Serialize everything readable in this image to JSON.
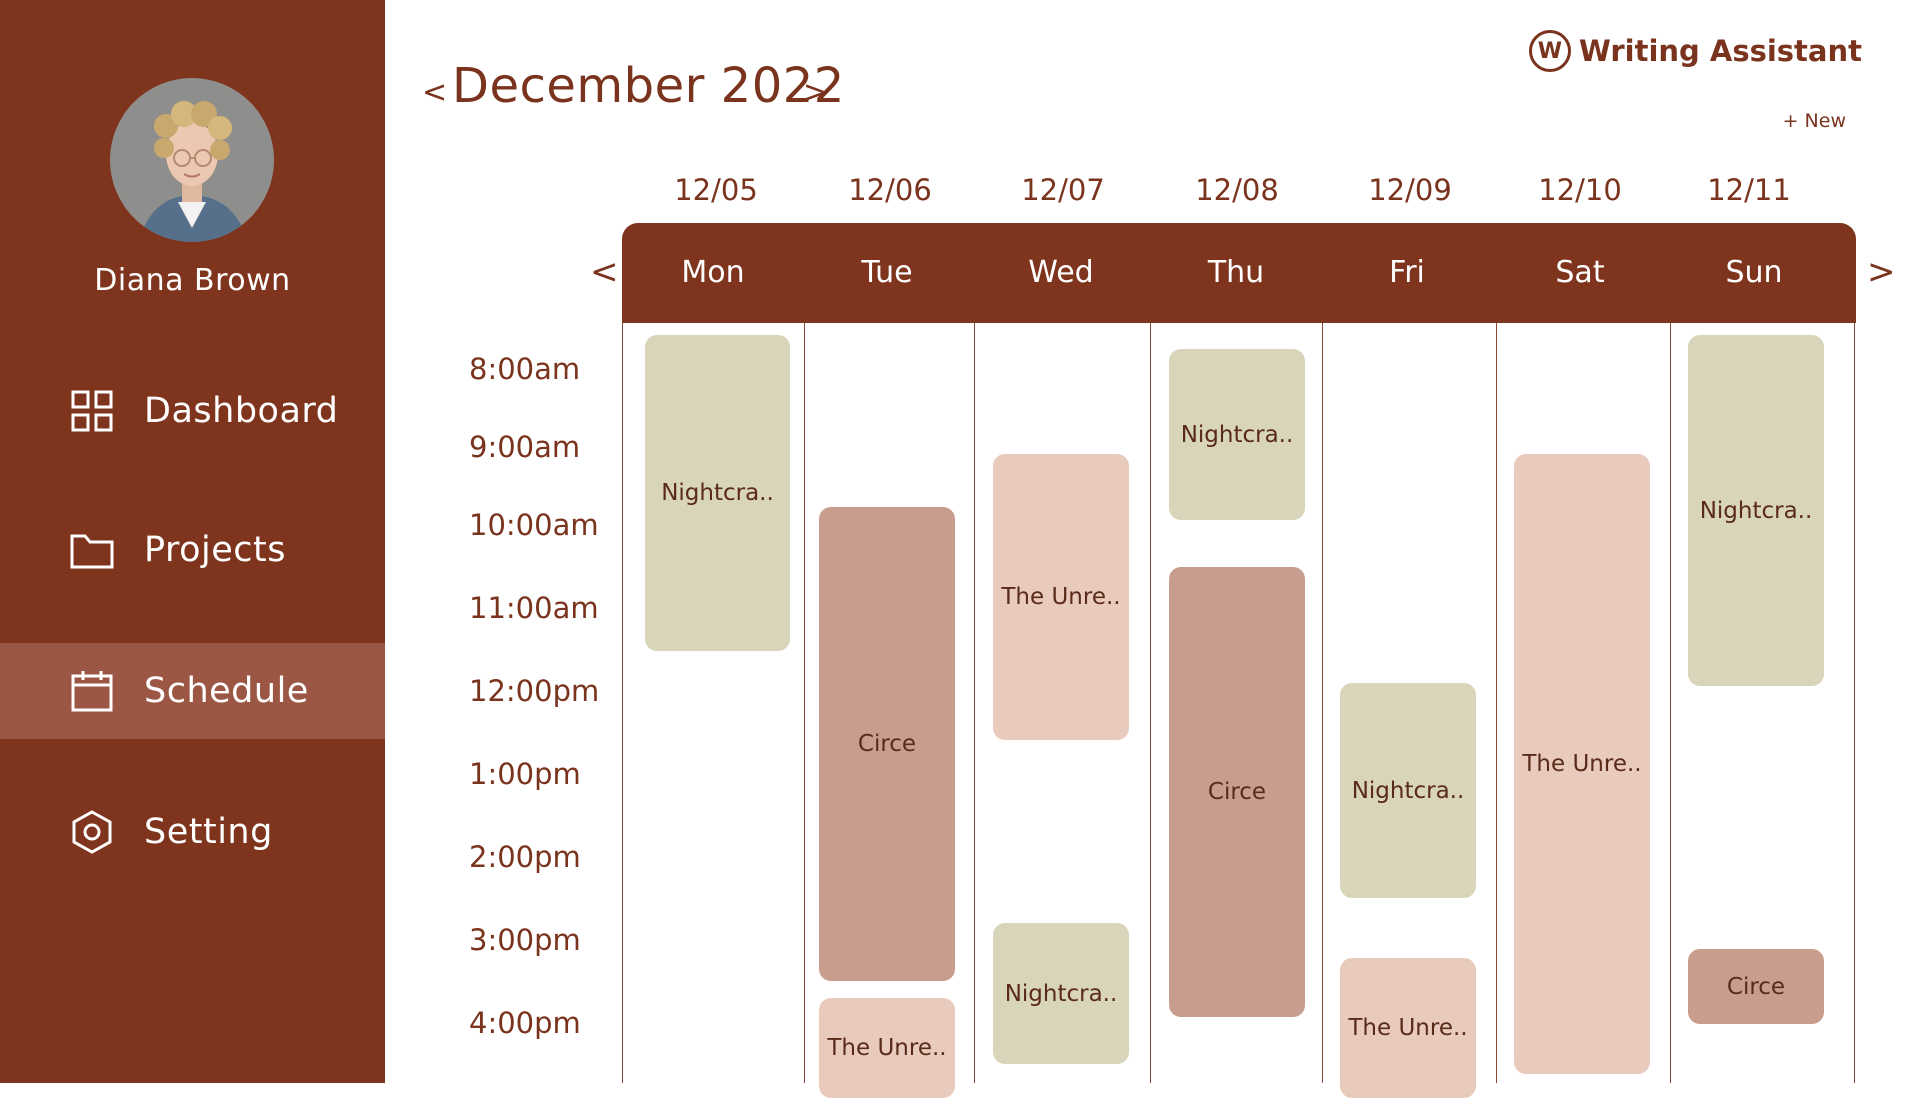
{
  "user": {
    "name": "Diana Brown"
  },
  "nav": [
    {
      "label": "Dashboard",
      "icon": "dashboard-icon"
    },
    {
      "label": "Projects",
      "icon": "folder-icon"
    },
    {
      "label": "Schedule",
      "icon": "calendar-icon"
    },
    {
      "label": "Setting",
      "icon": "settings-icon"
    }
  ],
  "header": {
    "month_title": "December 2022",
    "prev": "<",
    "next": ">",
    "brand_logo_letter": "W",
    "brand_name": "Writing Assistant",
    "new_label": "+ New"
  },
  "calendar": {
    "dates": [
      "12/05",
      "12/06",
      "12/07",
      "12/08",
      "12/09",
      "12/10",
      "12/11"
    ],
    "days": [
      "Mon",
      "Tue",
      "Wed",
      "Thu",
      "Fri",
      "Sat",
      "Sun"
    ],
    "week_prev": "<",
    "week_next": ">",
    "times": [
      "8:00am",
      "9:00am",
      "10:00am",
      "11:00am",
      "12:00pm",
      "1:00pm",
      "2:00pm",
      "3:00pm",
      "4:00pm"
    ],
    "events": [
      {
        "title": "Nightcra..",
        "day": "Mon",
        "start": "7:50am",
        "end": "11:35am"
      },
      {
        "title": "Circe",
        "day": "Tue",
        "start": "9:55am",
        "end": "3:40pm"
      },
      {
        "title": "The Unre..",
        "day": "Tue",
        "start": "3:55pm",
        "end": "4:40pm+"
      },
      {
        "title": "The Unre..",
        "day": "Wed",
        "start": "9:05am",
        "end": "12:35pm"
      },
      {
        "title": "Nightcra..",
        "day": "Wed",
        "start": "3:00pm",
        "end": "4:35pm"
      },
      {
        "title": "Nightcra..",
        "day": "Thu",
        "start": "7:55am",
        "end": "9:55am"
      },
      {
        "title": "Circe",
        "day": "Thu",
        "start": "10:25am",
        "end": "3:55pm"
      },
      {
        "title": "Nightcra..",
        "day": "Fri",
        "start": "11:50am",
        "end": "2:30pm"
      },
      {
        "title": "The Unre..",
        "day": "Fri",
        "start": "3:10pm",
        "end": "4:40pm+"
      },
      {
        "title": "The Unre..",
        "day": "Sat",
        "start": "9:05am",
        "end": "4:40pm"
      },
      {
        "title": "Nightcra..",
        "day": "Sun",
        "start": "7:50am",
        "end": "12:00pm"
      },
      {
        "title": "Circe",
        "day": "Sun",
        "start": "3:05pm",
        "end": "3:55pm"
      }
    ]
  },
  "colors": {
    "primary": "#7f341d",
    "active_nav": "#9b5744",
    "event_green": "#d8d5ba",
    "event_rose": "#c89d8d",
    "event_pink": "#e8cbbc"
  }
}
